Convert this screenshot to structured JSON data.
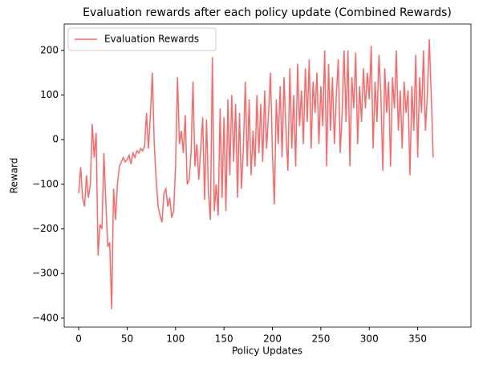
{
  "chart_data": {
    "type": "line",
    "title": "Evaluation rewards after each policy update (Combined Rewards)",
    "xlabel": "Policy Updates",
    "ylabel": "Reward",
    "legend": "upper left",
    "grid": false,
    "xlim": [
      -15,
      405
    ],
    "ylim": [
      -420,
      259
    ],
    "xticks": [
      0,
      50,
      100,
      150,
      200,
      250,
      300,
      350
    ],
    "yticks": [
      {
        "value": -400,
        "label": "−400"
      },
      {
        "value": -300,
        "label": "−300"
      },
      {
        "value": -200,
        "label": "−200"
      },
      {
        "value": -100,
        "label": "−100"
      },
      0,
      100,
      200
    ],
    "x": [
      0,
      2,
      4,
      6,
      8,
      10,
      12,
      14,
      16,
      18,
      20,
      22,
      24,
      26,
      28,
      30,
      32,
      34,
      36,
      38,
      40,
      42,
      44,
      46,
      48,
      50,
      52,
      54,
      56,
      58,
      60,
      62,
      64,
      66,
      68,
      70,
      72,
      74,
      76,
      78,
      80,
      82,
      84,
      86,
      88,
      90,
      92,
      94,
      96,
      98,
      100,
      102,
      104,
      106,
      108,
      110,
      112,
      114,
      116,
      118,
      120,
      122,
      124,
      126,
      128,
      130,
      132,
      134,
      136,
      138,
      140,
      142,
      144,
      146,
      148,
      150,
      152,
      154,
      156,
      158,
      160,
      162,
      164,
      166,
      168,
      170,
      172,
      174,
      176,
      178,
      180,
      182,
      184,
      186,
      188,
      190,
      192,
      194,
      196,
      198,
      200,
      202,
      204,
      206,
      208,
      210,
      212,
      214,
      216,
      218,
      220,
      222,
      224,
      226,
      228,
      230,
      232,
      234,
      236,
      238,
      240,
      242,
      244,
      246,
      248,
      250,
      252,
      254,
      256,
      258,
      260,
      262,
      264,
      266,
      268,
      270,
      272,
      274,
      276,
      278,
      280,
      282,
      284,
      286,
      288,
      290,
      292,
      294,
      296,
      298,
      300,
      302,
      304,
      306,
      308,
      310,
      312,
      314,
      316,
      318,
      320,
      322,
      324,
      326,
      328,
      330,
      332,
      334,
      336,
      338,
      340,
      342,
      344,
      346,
      348,
      350,
      352,
      354,
      356,
      358,
      360,
      362,
      364,
      366
    ],
    "series": [
      {
        "name": "Evaluation Rewards",
        "color": "#ff6666",
        "values": [
          -120,
          -62,
          -130,
          -150,
          -80,
          -130,
          -100,
          35,
          -40,
          15,
          -260,
          -190,
          -200,
          -30,
          -140,
          -240,
          -230,
          -380,
          -110,
          -180,
          -100,
          -60,
          -50,
          -40,
          -50,
          -45,
          -35,
          -55,
          -30,
          -40,
          -25,
          -30,
          -20,
          -25,
          -15,
          60,
          -20,
          55,
          150,
          -10,
          -90,
          -150,
          -170,
          -185,
          -120,
          -110,
          -150,
          -130,
          -175,
          -160,
          -60,
          140,
          -10,
          20,
          -30,
          55,
          -100,
          -90,
          -30,
          130,
          -60,
          -10,
          -90,
          -20,
          50,
          -135,
          45,
          -120,
          -180,
          185,
          -160,
          -100,
          -170,
          70,
          -130,
          50,
          -160,
          90,
          -80,
          100,
          -50,
          80,
          -130,
          60,
          -110,
          -20,
          130,
          -60,
          90,
          -80,
          20,
          -60,
          100,
          -30,
          80,
          -50,
          110,
          -20,
          60,
          150,
          -30,
          -145,
          90,
          -10,
          120,
          -40,
          140,
          20,
          -70,
          160,
          -20,
          100,
          -60,
          170,
          30,
          110,
          -10,
          160,
          40,
          180,
          -20,
          130,
          60,
          150,
          -10,
          120,
          30,
          200,
          -60,
          170,
          20,
          140,
          -10,
          100,
          180,
          -30,
          60,
          200,
          40,
          200,
          -60,
          140,
          70,
          195,
          -10,
          120,
          40,
          160,
          70,
          150,
          90,
          210,
          -20,
          130,
          40,
          190,
          100,
          -70,
          160,
          60,
          130,
          -60,
          140,
          70,
          200,
          20,
          110,
          -20,
          130,
          60,
          110,
          -80,
          120,
          20,
          190,
          -40,
          140,
          60,
          200,
          20,
          100,
          225,
          100,
          -40
        ]
      }
    ]
  }
}
